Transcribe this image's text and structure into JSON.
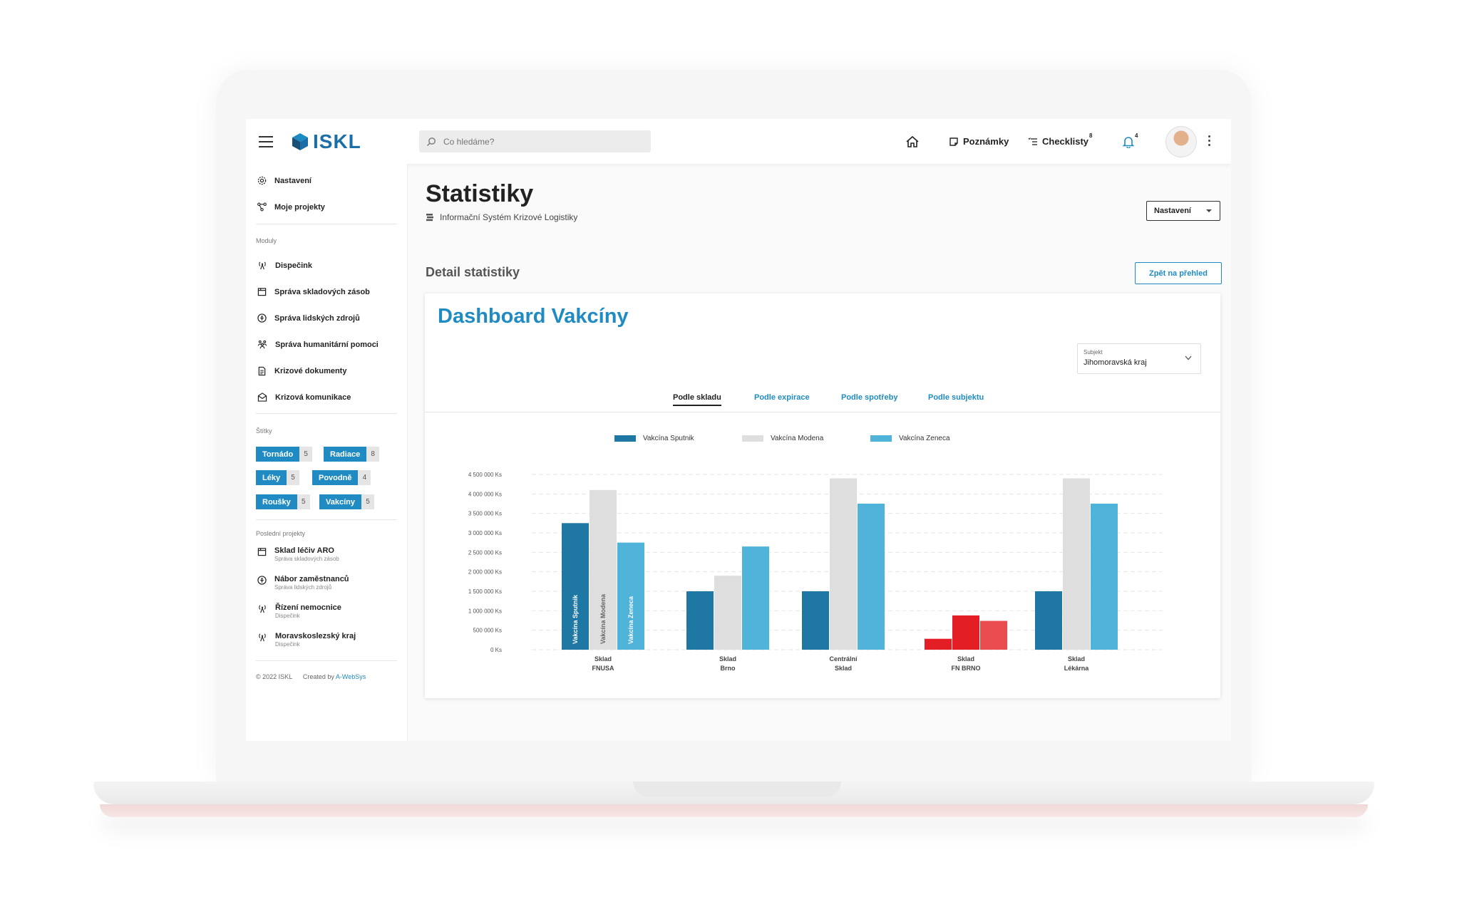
{
  "header": {
    "logo_text": "ISKL",
    "search_placeholder": "Co hledáme?",
    "notes_label": "Poznámky",
    "checklists_label": "Checklisty",
    "checklists_count": "8",
    "notifications_count": "4"
  },
  "sidebar": {
    "top_items": [
      {
        "label": "Nastavení",
        "icon": "gear-icon"
      },
      {
        "label": "Moje projekty",
        "icon": "share-nodes-icon"
      }
    ],
    "modules_title": "Moduly",
    "modules": [
      {
        "label": "Dispečink",
        "icon": "antenna-icon"
      },
      {
        "label": "Správa skladových zásob",
        "icon": "box-icon"
      },
      {
        "label": "Správa lidských zdrojů",
        "icon": "person-circle-icon"
      },
      {
        "label": "Správa humanitární pomoci",
        "icon": "people-icon"
      },
      {
        "label": "Krizové dokumenty",
        "icon": "document-icon"
      },
      {
        "label": "Krizová komunikace",
        "icon": "envelope-icon"
      }
    ],
    "tags_title": "Štítky",
    "tags": [
      {
        "name": "Tornádo",
        "count": "5"
      },
      {
        "name": "Radiace",
        "count": "8"
      },
      {
        "name": "Léky",
        "count": "5"
      },
      {
        "name": "Povodně",
        "count": "4"
      },
      {
        "name": "Roušky",
        "count": "5"
      },
      {
        "name": "Vakcíny",
        "count": "5"
      }
    ],
    "recent_title": "Poslední projekty",
    "recent": [
      {
        "title": "Sklad léčiv ARO",
        "sub": "Správa skladových zásob",
        "icon": "box-icon"
      },
      {
        "title": "Nábor zaměstnanců",
        "sub": "Správa lidských zdrojů",
        "icon": "person-circle-icon"
      },
      {
        "title": "Řízení nemocnice",
        "sub": "Dispečink",
        "icon": "antenna-icon"
      },
      {
        "title": "Moravskoslezský kraj",
        "sub": "Dispečink",
        "icon": "antenna-icon"
      }
    ],
    "footer_copyright": "© 2022 ISKL",
    "footer_created": "Created by",
    "footer_author": "A-WebSys"
  },
  "main": {
    "title": "Statistiky",
    "subtitle": "Informační Systém Krizové Logistiky",
    "settings_button": "Nastavení",
    "section_title": "Detail statistiky",
    "back_button": "Zpět na přehled",
    "card_title": "Dashboard Vakcíny",
    "subject_label": "Subjekt",
    "subject_value": "Jihomoravská kraj",
    "tabs": [
      "Podle skladu",
      "Podle expirace",
      "Podle spotřeby",
      "Podle subjektu"
    ]
  },
  "colors": {
    "accent": "#1f8bc2",
    "sputnik": "#1f77a3",
    "modena": "#dedede",
    "zeneca": "#4fb3da",
    "alert": "#e31e24",
    "alert_light": "#e94b4f"
  },
  "chart_data": {
    "type": "bar",
    "categories": [
      [
        "Sklad",
        "FNUSA"
      ],
      [
        "Sklad",
        "Brno"
      ],
      [
        "Centrální",
        "Sklad"
      ],
      [
        "Sklad",
        "FN BRNO"
      ],
      [
        "Sklad",
        "Lékárna"
      ]
    ],
    "series": [
      {
        "name": "Vakcína Sputnik",
        "values": [
          3250000,
          1500000,
          1500000,
          280000,
          1500000
        ]
      },
      {
        "name": "Vakcína Modena",
        "values": [
          4100000,
          1900000,
          4400000,
          880000,
          4400000
        ]
      },
      {
        "name": "Vakcína Zeneca",
        "values": [
          2750000,
          2650000,
          3750000,
          740000,
          3750000
        ]
      }
    ],
    "ylim": [
      0,
      4500000
    ],
    "y_ticks": [
      "0 Ks",
      "500 000 Ks",
      "1 000 000 Ks",
      "1 500 000 Ks",
      "2 000 000 Ks",
      "2 500 000 Ks",
      "3 000 000 Ks",
      "3 500 000 Ks",
      "4 000 000 Ks",
      "4 500 000 Ks"
    ],
    "bar_labels_first_group": [
      "Vakcína Sputnik",
      "Vakcína Modena",
      "Vakcína Zeneca"
    ],
    "highlight_category_index": 3,
    "legend_position": "top",
    "grid": true
  }
}
